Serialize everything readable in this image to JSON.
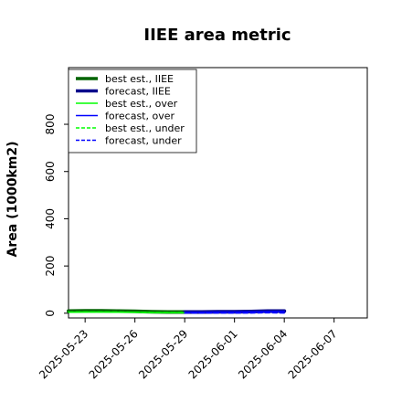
{
  "chart_data": {
    "type": "line",
    "title": "IIEE area metric",
    "xlabel": "",
    "ylabel": "Area (1000km2)",
    "x_ticks": [
      "2025-05-23",
      "2025-05-26",
      "2025-05-29",
      "2025-06-01",
      "2025-06-04",
      "2025-06-07"
    ],
    "highlighted_x_tick": "2025-05-29",
    "highlight_color": "#2ca02c",
    "xlim": [
      "2025-05-22",
      "2025-06-09"
    ],
    "ylim": [
      -20,
      1040
    ],
    "y_ticks": [
      0,
      200,
      400,
      600,
      800
    ],
    "grid": false,
    "legend_position": "top-left",
    "series": [
      {
        "name": "best est., IIEE",
        "color": "#006400",
        "style": "solid",
        "width": "thick",
        "x": [
          "2025-05-22",
          "2025-05-23",
          "2025-05-24",
          "2025-05-25",
          "2025-05-26",
          "2025-05-27",
          "2025-05-28",
          "2025-05-29"
        ],
        "values": [
          9,
          10,
          10,
          9,
          8,
          6,
          5,
          5
        ]
      },
      {
        "name": "forecast, IIEE",
        "color": "#00008b",
        "style": "solid",
        "width": "thick",
        "x": [
          "2025-05-29",
          "2025-05-30",
          "2025-05-31",
          "2025-06-01",
          "2025-06-02",
          "2025-06-03",
          "2025-06-04"
        ],
        "values": [
          5,
          5,
          6,
          6,
          7,
          9,
          9
        ]
      },
      {
        "name": "forecast, over",
        "color": "#0000ff",
        "style": "solid",
        "width": "thin",
        "x": [
          "2025-05-29",
          "2025-05-30",
          "2025-05-31",
          "2025-06-01",
          "2025-06-02",
          "2025-06-03",
          "2025-06-04"
        ],
        "values": [
          4,
          4,
          5,
          5,
          6,
          7,
          8
        ]
      },
      {
        "name": "best est., over",
        "color": "#00ff00",
        "style": "solid",
        "width": "thin",
        "x": [
          "2025-05-22",
          "2025-05-23",
          "2025-05-24",
          "2025-05-25",
          "2025-05-26",
          "2025-05-27",
          "2025-05-28",
          "2025-05-29"
        ],
        "values": [
          4,
          5,
          5,
          4,
          4,
          3,
          2,
          2
        ]
      },
      {
        "name": "best est., under",
        "color": "#00ff00",
        "style": "dashed",
        "width": "thin",
        "x": [
          "2025-05-22",
          "2025-05-23",
          "2025-05-24",
          "2025-05-25",
          "2025-05-26",
          "2025-05-27",
          "2025-05-28",
          "2025-05-29"
        ],
        "values": [
          5,
          5,
          5,
          5,
          4,
          3,
          3,
          3
        ]
      },
      {
        "name": "forecast, under",
        "color": "#0000ff",
        "style": "dashed",
        "width": "thin",
        "x": [
          "2025-05-29",
          "2025-05-30",
          "2025-05-31",
          "2025-06-01",
          "2025-06-02",
          "2025-06-03",
          "2025-06-04"
        ],
        "values": [
          1,
          1,
          1,
          1,
          1,
          2,
          1
        ]
      }
    ],
    "legend_order": [
      "best est., IIEE",
      "forecast, IIEE",
      "best est., over",
      "forecast, over",
      "best est., under",
      "forecast, under"
    ]
  }
}
